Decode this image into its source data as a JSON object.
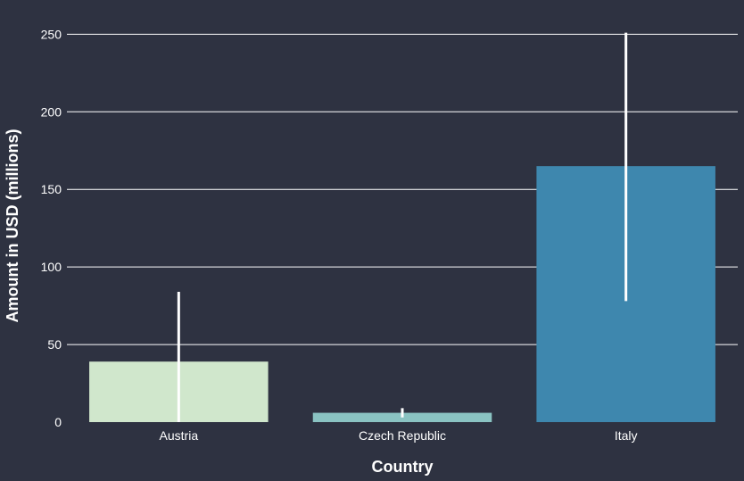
{
  "chart_data": {
    "type": "bar",
    "title": "",
    "xlabel": "Country",
    "ylabel": "Amount in USD (millions)",
    "categories": [
      "Austria",
      "Czech Republic",
      "Italy"
    ],
    "values": [
      39,
      6,
      165
    ],
    "error_bars": [
      {
        "low": 0,
        "high": 84
      },
      {
        "low": 3,
        "high": 9
      },
      {
        "low": 78,
        "high": 251
      }
    ],
    "ylim": [
      0,
      260
    ],
    "yticks": [
      0,
      50,
      100,
      150,
      200,
      250
    ],
    "grid": true,
    "colors": {
      "background": "#2e3241",
      "grid": "#ffffff",
      "text": "#ffffff",
      "error_bar": "#ffffff",
      "bars": [
        "#d0e7cc",
        "#8ac3c2",
        "#3e87ae"
      ]
    }
  }
}
